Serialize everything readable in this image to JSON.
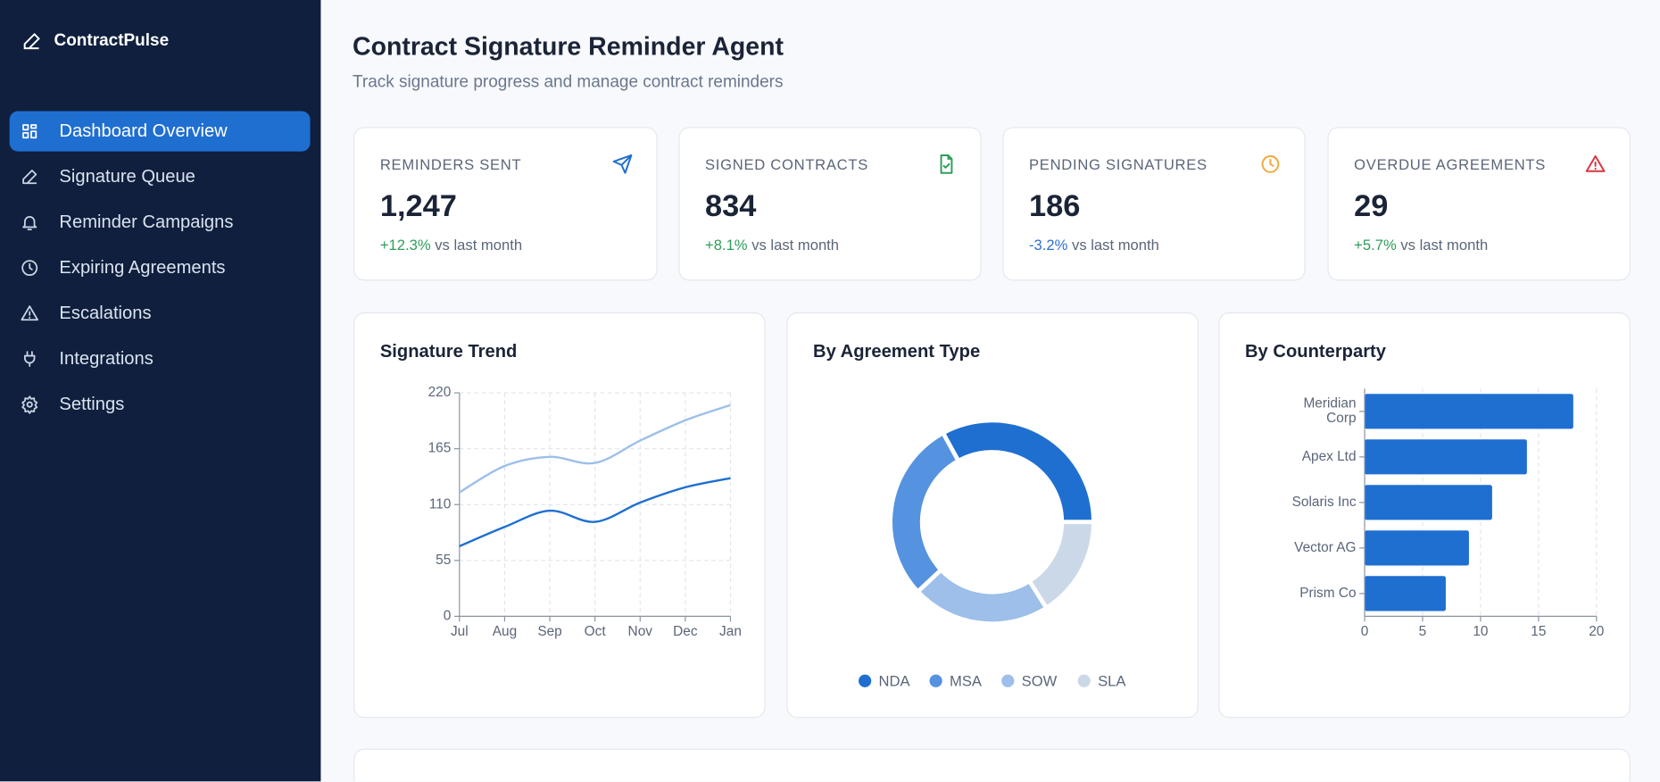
{
  "sidebar": {
    "brand": "ContractPulse",
    "nav": [
      {
        "label": "Dashboard Overview",
        "active": true
      },
      {
        "label": "Signature Queue",
        "active": false
      },
      {
        "label": "Reminder Campaigns",
        "active": false
      },
      {
        "label": "Expiring Agreements",
        "active": false
      },
      {
        "label": "Escalations",
        "active": false
      },
      {
        "label": "Integrations",
        "active": false
      },
      {
        "label": "Settings",
        "active": false
      }
    ]
  },
  "header": {
    "title": "Contract Signature Reminder Agent",
    "subtitle": "Track signature progress and manage contract reminders"
  },
  "kpis": [
    {
      "label": "REMINDERS SENT",
      "value": "1,247",
      "change": "+12.3%",
      "change_note": "vs last month",
      "trend": "up"
    },
    {
      "label": "SIGNED CONTRACTS",
      "value": "834",
      "change": "+8.1%",
      "change_note": "vs last month",
      "trend": "up"
    },
    {
      "label": "PENDING SIGNATURES",
      "value": "186",
      "change": "-3.2%",
      "change_note": "vs last month",
      "trend": "down"
    },
    {
      "label": "OVERDUE AGREEMENTS",
      "value": "29",
      "change": "+5.7%",
      "change_note": "vs last month",
      "trend": "up"
    }
  ],
  "chart_data": [
    {
      "type": "line",
      "title": "Signature Trend",
      "categories": [
        "Jul",
        "Aug",
        "Sep",
        "Oct",
        "Nov",
        "Dec",
        "Jan"
      ],
      "series": [
        {
          "color": "#9dbfe9",
          "values": [
            122,
            148,
            157,
            151,
            173,
            193,
            208
          ]
        },
        {
          "color": "#1f6fd1",
          "values": [
            69,
            88,
            104,
            93,
            112,
            127,
            136
          ]
        }
      ],
      "ylim": [
        0,
        220
      ],
      "yticks": [
        0,
        55,
        110,
        165,
        220
      ],
      "grid": true
    },
    {
      "type": "pie",
      "title": "By Agreement Type",
      "categories": [
        "NDA",
        "MSA",
        "SOW",
        "SLA"
      ],
      "values": [
        33,
        29,
        22,
        16
      ],
      "colors": [
        "#1f6fd1",
        "#5592e0",
        "#9dbfe9",
        "#cbd8e8"
      ],
      "donut": true
    },
    {
      "type": "hbar",
      "title": "By Counterparty",
      "categories": [
        "Meridian Corp",
        "Apex Ltd",
        "Solaris Inc",
        "Vector AG",
        "Prism Co"
      ],
      "values": [
        18,
        14,
        11,
        9,
        7
      ],
      "color": "#1f6fd1",
      "xlim": [
        0,
        20
      ],
      "xticks": [
        0,
        5,
        10,
        15,
        20
      ],
      "grid": true
    }
  ]
}
